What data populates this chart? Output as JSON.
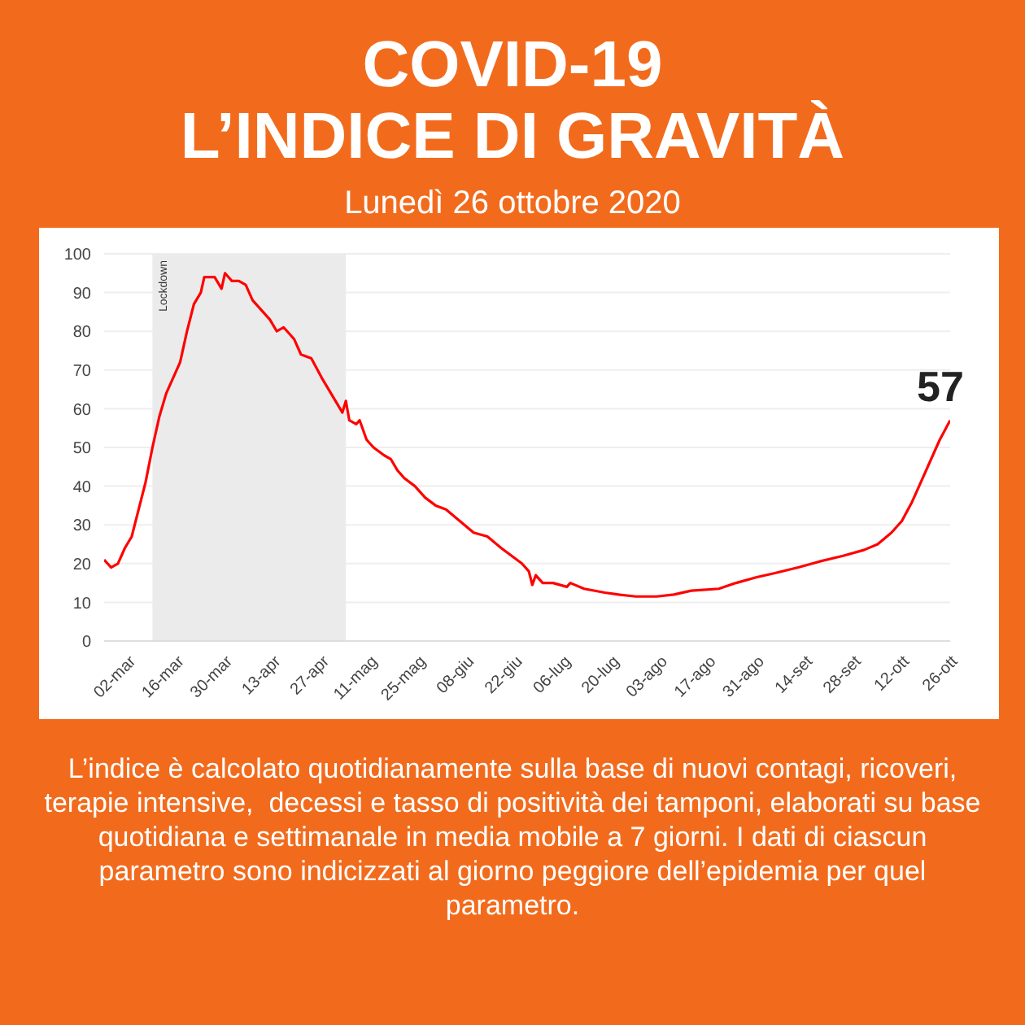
{
  "chart_data": {
    "type": "line",
    "title": "COVID-19\nL’INDICE DI GRAVITÀ",
    "subtitle": "Lunedì 26 ottobre 2020",
    "x": [
      "2020-02-24",
      "2020-02-26",
      "2020-02-28",
      "2020-03-01",
      "2020-03-03",
      "2020-03-05",
      "2020-03-07",
      "2020-03-09",
      "2020-03-11",
      "2020-03-13",
      "2020-03-15",
      "2020-03-17",
      "2020-03-19",
      "2020-03-21",
      "2020-03-23",
      "2020-03-24",
      "2020-03-27",
      "2020-03-29",
      "2020-03-30",
      "2020-04-01",
      "2020-04-03",
      "2020-04-05",
      "2020-04-07",
      "2020-04-10",
      "2020-04-12",
      "2020-04-14",
      "2020-04-16",
      "2020-04-19",
      "2020-04-21",
      "2020-04-24",
      "2020-04-27",
      "2020-04-29",
      "2020-05-01",
      "2020-05-03",
      "2020-05-04",
      "2020-05-05",
      "2020-05-07",
      "2020-05-08",
      "2020-05-10",
      "2020-05-12",
      "2020-05-15",
      "2020-05-17",
      "2020-05-19",
      "2020-05-21",
      "2020-05-24",
      "2020-05-27",
      "2020-05-30",
      "2020-06-02",
      "2020-06-06",
      "2020-06-10",
      "2020-06-14",
      "2020-06-18",
      "2020-06-21",
      "2020-06-24",
      "2020-06-26",
      "2020-06-27",
      "2020-06-28",
      "2020-06-30",
      "2020-07-03",
      "2020-07-07",
      "2020-07-08",
      "2020-07-12",
      "2020-07-18",
      "2020-07-22",
      "2020-07-27",
      "2020-08-02",
      "2020-08-07",
      "2020-08-12",
      "2020-08-20",
      "2020-08-25",
      "2020-08-31",
      "2020-09-05",
      "2020-09-12",
      "2020-09-18",
      "2020-09-25",
      "2020-10-01",
      "2020-10-05",
      "2020-10-09",
      "2020-10-12",
      "2020-10-15",
      "2020-10-18",
      "2020-10-21",
      "2020-10-23",
      "2020-10-26"
    ],
    "series": [
      {
        "color": "#ff0000",
        "values": [
          21,
          19,
          20,
          24,
          27,
          34,
          41,
          50,
          58,
          64,
          68,
          72,
          80,
          87,
          90,
          94,
          94,
          91,
          95,
          93,
          93,
          92,
          88,
          85,
          83,
          80,
          81,
          78,
          74,
          73,
          68,
          65,
          62,
          59,
          62,
          57,
          56,
          57,
          52,
          50,
          48,
          47,
          44,
          42,
          40,
          37,
          35,
          34,
          31,
          28,
          27,
          24,
          22,
          20,
          18,
          14.5,
          17,
          15,
          15,
          14,
          15,
          13.5,
          12.5,
          12,
          11.5,
          11.5,
          12,
          13,
          13.5,
          15,
          16.5,
          17.5,
          19,
          20.5,
          22,
          23.5,
          25,
          28,
          31,
          36,
          42,
          48,
          52,
          57
        ]
      }
    ],
    "xlim": [
      "2020-02-24",
      "2020-10-26"
    ],
    "xticks": [
      {
        "value": "2020-03-02",
        "label": "02-mar"
      },
      {
        "value": "2020-03-16",
        "label": "16-mar"
      },
      {
        "value": "2020-03-30",
        "label": "30-mar"
      },
      {
        "value": "2020-04-13",
        "label": "13-apr"
      },
      {
        "value": "2020-04-27",
        "label": "27-apr"
      },
      {
        "value": "2020-05-11",
        "label": "11-mag"
      },
      {
        "value": "2020-05-25",
        "label": "25-mag"
      },
      {
        "value": "2020-06-08",
        "label": "08-giu"
      },
      {
        "value": "2020-06-22",
        "label": "22-giu"
      },
      {
        "value": "2020-07-06",
        "label": "06-lug"
      },
      {
        "value": "2020-07-20",
        "label": "20-lug"
      },
      {
        "value": "2020-08-03",
        "label": "03-ago"
      },
      {
        "value": "2020-08-17",
        "label": "17-ago"
      },
      {
        "value": "2020-08-31",
        "label": "31-ago"
      },
      {
        "value": "2020-09-14",
        "label": "14-set"
      },
      {
        "value": "2020-09-28",
        "label": "28-set"
      },
      {
        "value": "2020-10-12",
        "label": "12-ott"
      },
      {
        "value": "2020-10-26",
        "label": "26-ott"
      }
    ],
    "ylim": [
      0,
      100
    ],
    "yticks": [
      0,
      10,
      20,
      30,
      40,
      50,
      60,
      70,
      80,
      90,
      100
    ],
    "grid": "y",
    "marker": "none",
    "line_style": "solid",
    "bands": [
      {
        "axis": "x",
        "from": "2020-03-09",
        "to": "2020-05-04",
        "label": "Lockdown",
        "color": "#ebebeb"
      }
    ],
    "annotations": [
      {
        "text": "57",
        "x": "2020-10-26",
        "y": 57
      },
      "L’indice è calcolato quotidianamente sulla base di nuovi contagi, ricoveri, terapie intensive,  decessi e tasso di positività dei tamponi, elaborati su base quotidiana e settimanale in media mobile a 7 giorni. I dati di ciascun parametro sono indicizzati al giorno peggiore dell’epidemia per quel parametro."
    ]
  }
}
